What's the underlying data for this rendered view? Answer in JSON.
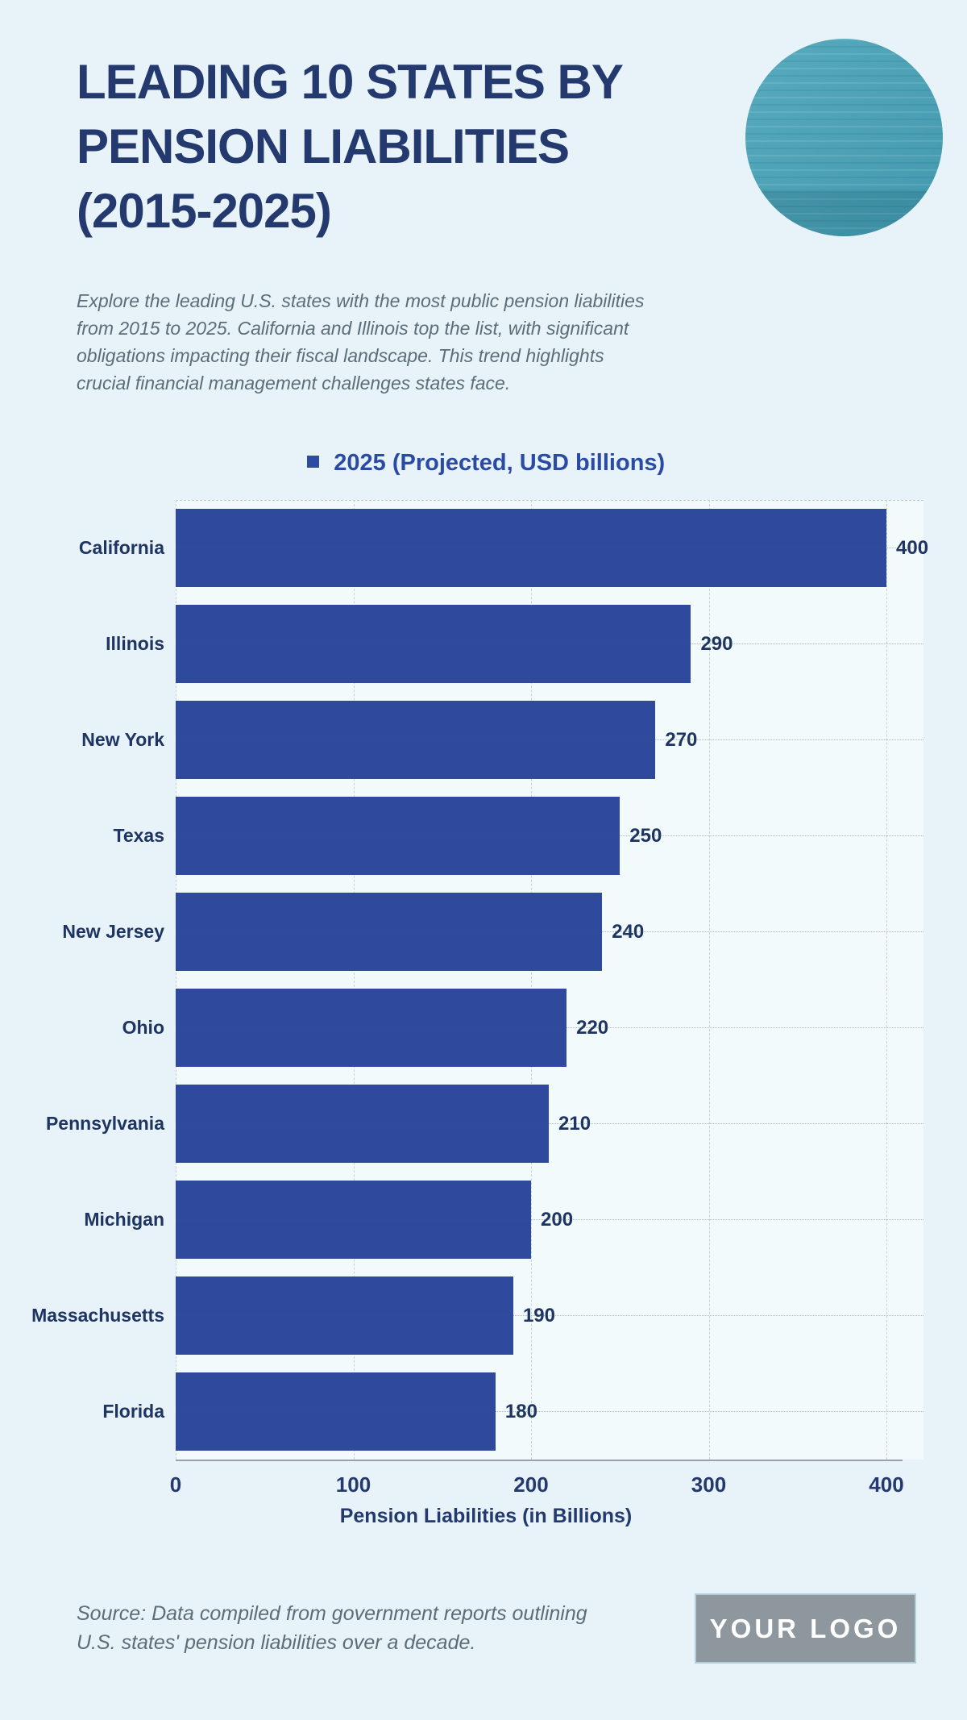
{
  "page": {
    "background_color": "#e7f3f8",
    "accent_navy": "#24396e"
  },
  "header": {
    "title_lines": [
      "LEADING 10 STATES BY",
      "PENSION LIABILITIES",
      "(2015-2025)"
    ],
    "brand_circle_color": "#4aa3b7"
  },
  "intro": {
    "lines": [
      "Explore the leading U.S. states with the most public pension liabilities",
      "from 2015 to 2025. California and Illinois top the list, with significant",
      "obligations impacting their fiscal landscape. This trend highlights",
      "crucial financial management challenges states face."
    ]
  },
  "chart_data": {
    "type": "bar",
    "orientation": "horizontal",
    "legend": "2025 (Projected, USD billions)",
    "legend_position": "top-center",
    "categories": [
      "California",
      "Illinois",
      "New York",
      "Texas",
      "New Jersey",
      "Ohio",
      "Pennsylvania",
      "Michigan",
      "Massachusetts",
      "Florida"
    ],
    "values": [
      400,
      290,
      270,
      250,
      240,
      220,
      210,
      200,
      190,
      180
    ],
    "xlabel": "Pension Liabilities (in Billions)",
    "xticks": [
      0,
      100,
      200,
      300,
      400
    ],
    "xlim": [
      0,
      400
    ],
    "grid": true,
    "bar_color": "#2f4a9c",
    "plot_background": "#f3fafc"
  },
  "footer": {
    "source_lines": [
      "Source: Data compiled from government reports outlining",
      "U.S. states' pension liabilities over a decade."
    ],
    "logo_text": "YOUR LOGO"
  }
}
